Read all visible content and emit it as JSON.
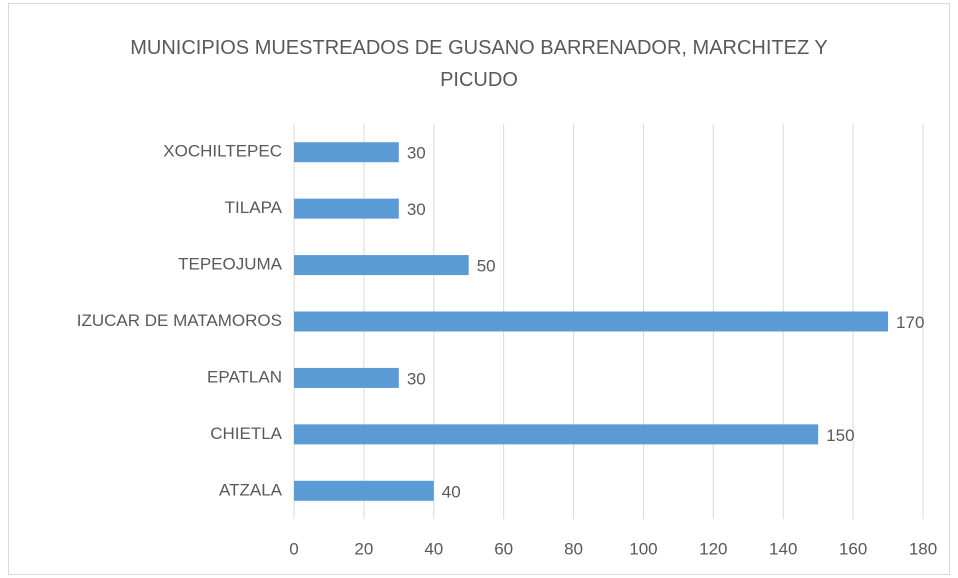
{
  "chart_data": {
    "type": "hbar",
    "title": "MUNICIPIOS MUESTREADOS DE GUSANO BARRENADOR, MARCHITEZ Y PICUDO",
    "categories": [
      "ATZALA",
      "CHIETLA",
      "EPATLAN",
      "IZUCAR DE MATAMOROS",
      "TEPEOJUMA",
      "TILAPA",
      "XOCHILTEPEC"
    ],
    "values": [
      40,
      150,
      30,
      170,
      50,
      30,
      30
    ],
    "color": "#5b9bd5",
    "xlim": [
      0,
      180
    ],
    "xticks": [
      0,
      20,
      40,
      60,
      80,
      100,
      120,
      140,
      160,
      180
    ],
    "grid": true
  }
}
